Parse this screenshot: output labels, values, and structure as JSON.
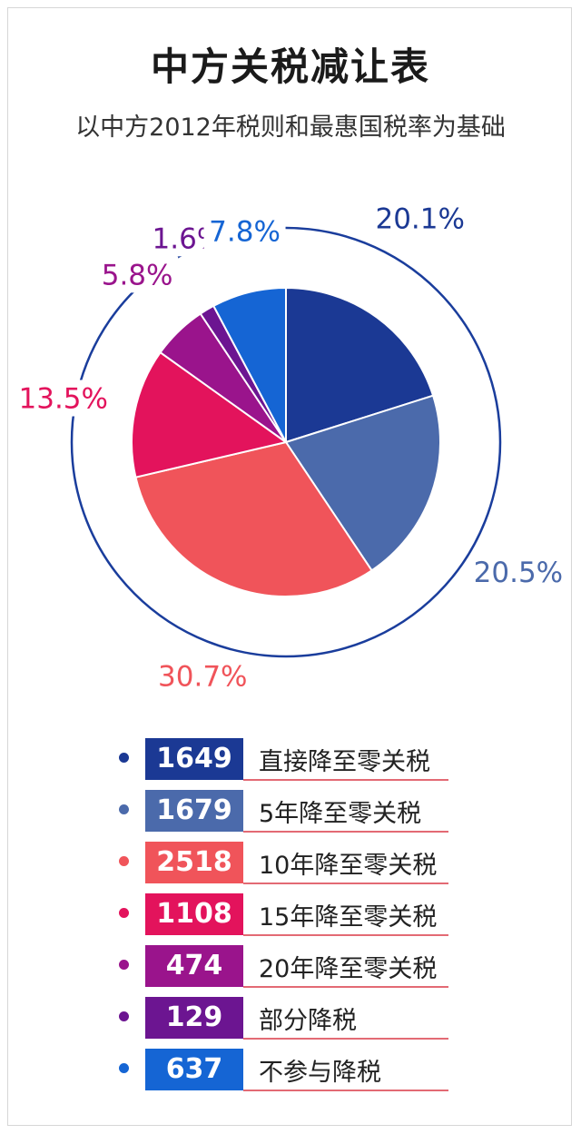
{
  "title": "中方关税减让表",
  "subtitle": "以中方2012年税则和最惠国税率为基础",
  "colors": {
    "ring": "#1a3d9c",
    "text": "#1a1a1a"
  },
  "chart_data": {
    "type": "pie",
    "categories": [
      "直接降至零关税",
      "5年降至零关税",
      "10年降至零关税",
      "15年降至零关税",
      "20年降至零关税",
      "部分降税",
      "不参与降税"
    ],
    "values": [
      1649,
      1679,
      2518,
      1108,
      474,
      129,
      637
    ],
    "percent_labels": [
      "20.1%",
      "20.5%",
      "30.7%",
      "13.5%",
      "5.8%",
      "1.6%",
      "7.8%"
    ],
    "colors": [
      "#1b3994",
      "#4b6aab",
      "#f0545a",
      "#e3135c",
      "#9a148c",
      "#6c1591",
      "#1565d4"
    ],
    "label_colors": [
      "#1b3994",
      "#4b6aab",
      "#f0545a",
      "#e3135c",
      "#9a148c",
      "#6c1591",
      "#1565d4"
    ]
  },
  "legend": [
    {
      "value": "1649",
      "label": "直接降至零关税"
    },
    {
      "value": "1679",
      "label": "5年降至零关税"
    },
    {
      "value": "2518",
      "label": "10年降至零关税"
    },
    {
      "value": "1108",
      "label": "15年降至零关税"
    },
    {
      "value": "474",
      "label": "20年降至零关税"
    },
    {
      "value": "129",
      "label": "部分降税"
    },
    {
      "value": "637",
      "label": "不参与降税"
    }
  ]
}
